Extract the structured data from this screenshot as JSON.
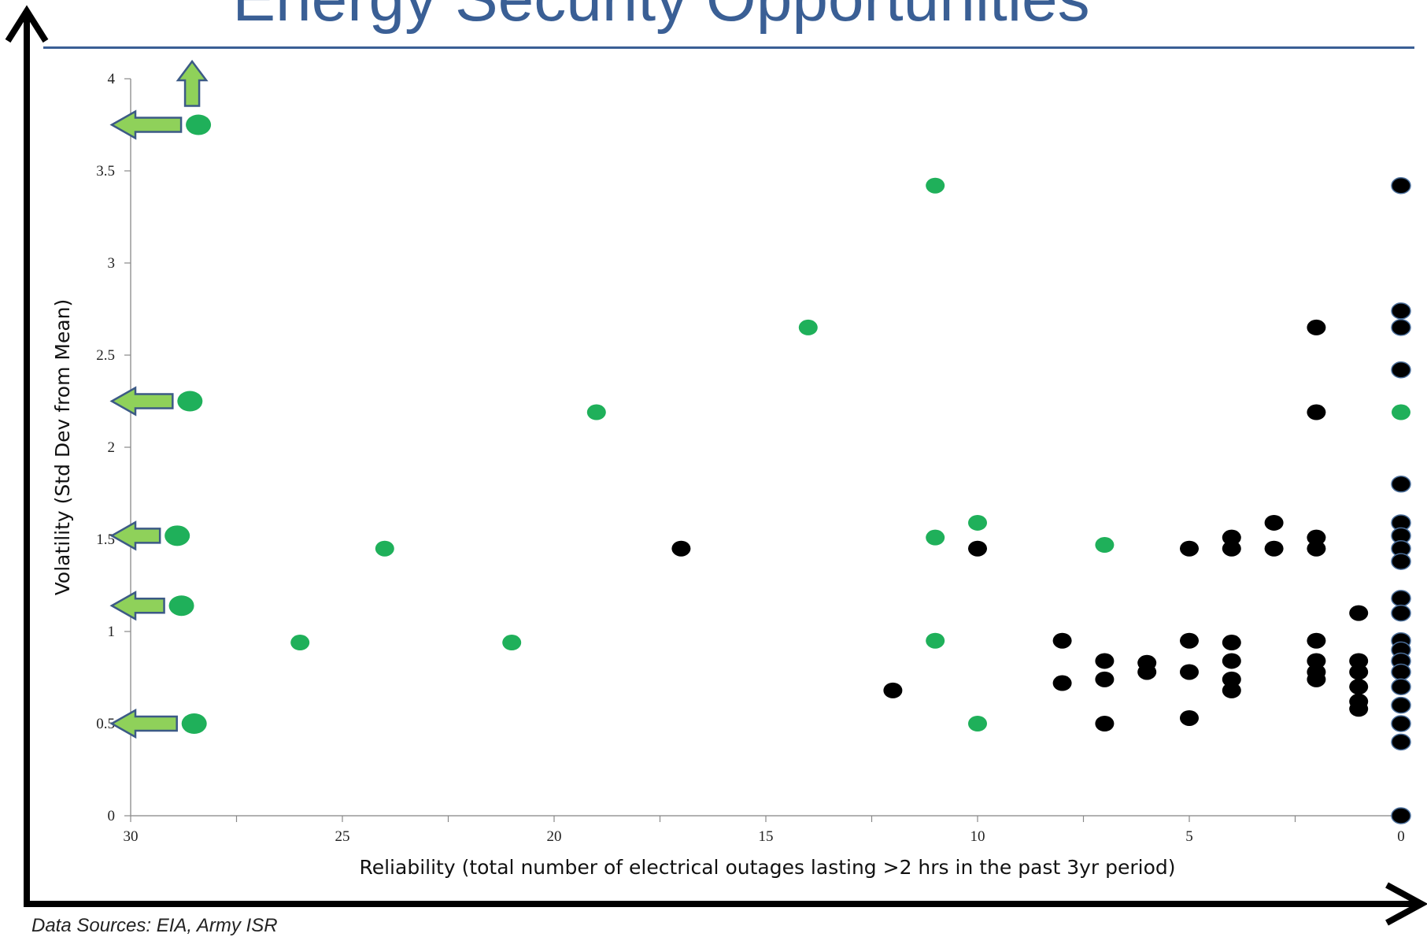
{
  "slide": {
    "title": "Energy Security Opportunities",
    "source_note": "Data Sources: EIA, Army ISR"
  },
  "colors": {
    "title": "#3a5f95",
    "green_point": "#1fb05a",
    "black_point": "#000000",
    "arrow_fill": "#8fd15a",
    "arrow_stroke": "#3c5a86"
  },
  "chart_data": {
    "type": "scatter",
    "xlabel": "Reliability (total number of electrical outages lasting >2 hrs in the past 3yr period)",
    "ylabel": "Volatility (Std Dev from Mean)",
    "xlim": [
      30,
      0
    ],
    "ylim": [
      0,
      4
    ],
    "x_reversed": true,
    "x_ticks": [
      "30",
      "25",
      "20",
      "15",
      "10",
      "5",
      "0"
    ],
    "y_ticks": [
      "0",
      "0.5",
      "1",
      "1.5",
      "2",
      "2.5",
      "3",
      "3.5",
      "4"
    ],
    "grid": false,
    "highlighted_installations": [
      [
        28.4,
        3.75
      ],
      [
        28.6,
        2.25
      ],
      [
        28.9,
        1.52
      ],
      [
        28.8,
        1.14
      ],
      [
        28.5,
        0.5
      ]
    ],
    "green": [
      [
        26,
        0.94
      ],
      [
        24,
        1.45
      ],
      [
        21,
        0.94
      ],
      [
        19,
        2.19
      ],
      [
        14,
        2.65
      ],
      [
        11,
        3.42
      ],
      [
        11,
        1.51
      ],
      [
        11,
        0.95
      ],
      [
        10,
        1.59
      ],
      [
        10,
        0.5
      ],
      [
        7,
        1.47
      ],
      [
        0,
        2.19
      ]
    ],
    "black": [
      [
        17,
        1.45
      ],
      [
        12,
        0.68
      ],
      [
        10,
        1.45
      ],
      [
        8,
        0.95
      ],
      [
        8,
        0.72
      ],
      [
        7,
        0.84
      ],
      [
        7,
        0.74
      ],
      [
        7,
        0.5
      ],
      [
        6,
        0.83
      ],
      [
        6,
        0.78
      ],
      [
        5,
        1.45
      ],
      [
        5,
        0.95
      ],
      [
        5,
        0.78
      ],
      [
        5,
        0.53
      ],
      [
        4,
        1.51
      ],
      [
        4,
        1.45
      ],
      [
        4,
        0.94
      ],
      [
        4,
        0.84
      ],
      [
        4,
        0.74
      ],
      [
        4,
        0.68
      ],
      [
        3,
        1.59
      ],
      [
        3,
        1.45
      ],
      [
        2,
        2.65
      ],
      [
        2,
        2.19
      ],
      [
        2,
        1.51
      ],
      [
        2,
        1.45
      ],
      [
        2,
        0.95
      ],
      [
        2,
        0.84
      ],
      [
        2,
        0.78
      ],
      [
        2,
        0.74
      ],
      [
        1,
        1.1
      ],
      [
        1,
        0.84
      ],
      [
        1,
        0.78
      ],
      [
        1,
        0.7
      ],
      [
        1,
        0.62
      ],
      [
        1,
        0.58
      ],
      [
        0,
        3.42
      ],
      [
        0,
        2.74
      ],
      [
        0,
        2.65
      ],
      [
        0,
        2.42
      ],
      [
        0,
        1.8
      ],
      [
        0,
        1.59
      ],
      [
        0,
        1.52
      ],
      [
        0,
        1.45
      ],
      [
        0,
        1.38
      ],
      [
        0,
        1.18
      ],
      [
        0,
        1.1
      ],
      [
        0,
        0.95
      ],
      [
        0,
        0.9
      ],
      [
        0,
        0.84
      ],
      [
        0,
        0.78
      ],
      [
        0,
        0.7
      ],
      [
        0,
        0.6
      ],
      [
        0,
        0.5
      ],
      [
        0,
        0.4
      ],
      [
        0,
        0.0
      ]
    ]
  }
}
